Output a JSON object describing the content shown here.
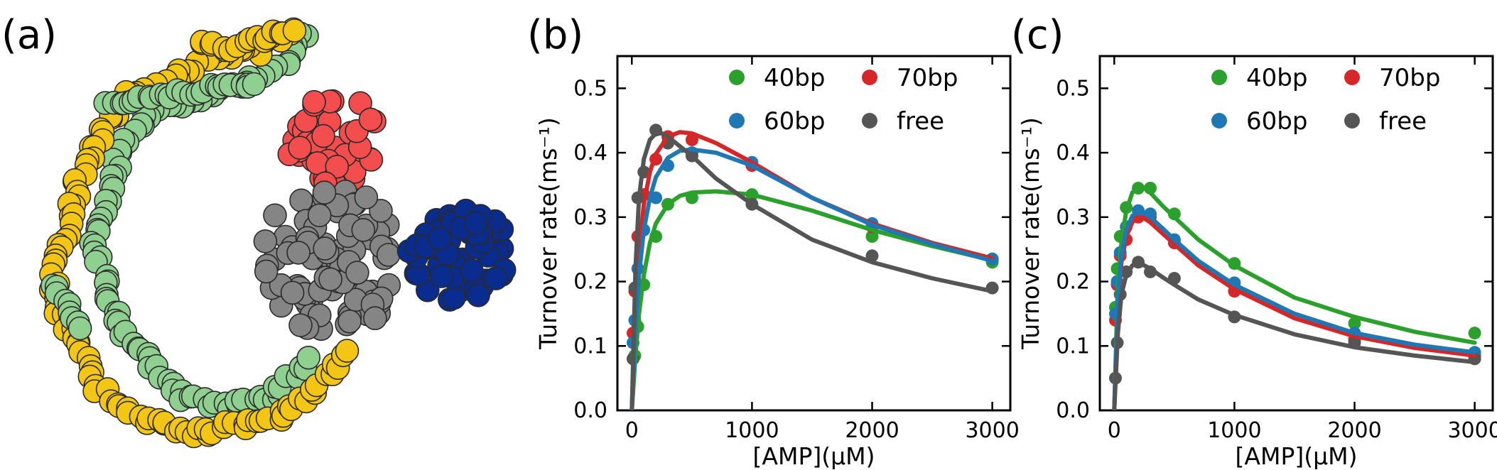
{
  "panel_labels": {
    "a": "(a)",
    "b": "(b)",
    "c": "(c)"
  },
  "colors": {
    "green": "#2ca02c",
    "red": "#d62728",
    "blue": "#1f77b4",
    "gray": "#555555",
    "bead_green": "#8fcf8f",
    "bead_yellow": "#f3c515",
    "bead_red": "#f44d4d",
    "bead_gray": "#858585",
    "bead_blue": "#0b2c8f"
  },
  "chart_data": [
    {
      "type": "line",
      "panel": "(b)",
      "xlabel": "[AMP](μM)",
      "ylabel": "Turnover rate(ms⁻¹)",
      "xlim": [
        -120,
        3150
      ],
      "ylim": [
        0,
        0.55
      ],
      "xticks": [
        0,
        1000,
        2000,
        3000
      ],
      "yticks": [
        0.0,
        0.1,
        0.2,
        0.3,
        0.4,
        0.5
      ],
      "ytick_labels": [
        "0.0",
        "0.1",
        "0.2",
        "0.3",
        "0.4",
        "0.5"
      ],
      "legend": {
        "position": "top-right",
        "columns": 2
      },
      "series": [
        {
          "name": "40bp",
          "color": "green",
          "points": {
            "x": [
              10,
              25,
              50,
              100,
              200,
              300,
              500,
              1000,
              2000,
              3000
            ],
            "y": [
              0.08,
              0.085,
              0.13,
              0.195,
              0.27,
              0.32,
              0.33,
              0.335,
              0.27,
              0.23
            ]
          },
          "curve": {
            "x": [
              0,
              30,
              60,
              100,
              150,
              200,
              300,
              400,
              500,
              700,
              1000,
              1500,
              2000,
              2500,
              3000
            ],
            "y": [
              0.0,
              0.085,
              0.15,
              0.21,
              0.26,
              0.29,
              0.32,
              0.333,
              0.338,
              0.34,
              0.335,
              0.31,
              0.28,
              0.255,
              0.233
            ]
          }
        },
        {
          "name": "70bp",
          "color": "red",
          "points": {
            "x": [
              10,
              25,
              50,
              100,
              200,
              300,
              500,
              1000,
              2000,
              3000
            ],
            "y": [
              0.12,
              0.185,
              0.27,
              0.335,
              0.39,
              0.425,
              0.42,
              0.38,
              0.285,
              0.235
            ]
          },
          "curve": {
            "x": [
              0,
              30,
              60,
              100,
              150,
              200,
              300,
              400,
              500,
              700,
              1000,
              1500,
              2000,
              2500,
              3000
            ],
            "y": [
              0.0,
              0.16,
              0.25,
              0.32,
              0.37,
              0.398,
              0.425,
              0.432,
              0.43,
              0.415,
              0.385,
              0.33,
              0.29,
              0.26,
              0.236
            ]
          }
        },
        {
          "name": "60bp",
          "color": "blue",
          "points": {
            "x": [
              10,
              25,
              50,
              100,
              200,
              300,
              500,
              1000,
              2000,
              3000
            ],
            "y": [
              0.105,
              0.14,
              0.22,
              0.28,
              0.33,
              0.38,
              0.4,
              0.385,
              0.29,
              0.235
            ]
          },
          "curve": {
            "x": [
              0,
              30,
              60,
              100,
              150,
              200,
              300,
              400,
              500,
              700,
              1000,
              1500,
              2000,
              2500,
              3000
            ],
            "y": [
              0.0,
              0.13,
              0.21,
              0.28,
              0.33,
              0.362,
              0.392,
              0.403,
              0.405,
              0.4,
              0.38,
              0.33,
              0.288,
              0.258,
              0.232
            ]
          }
        },
        {
          "name": "free",
          "color": "gray",
          "points": {
            "x": [
              10,
              25,
              50,
              100,
              200,
              300,
              500,
              1000,
              2000,
              3000
            ],
            "y": [
              0.08,
              0.19,
              0.33,
              0.37,
              0.435,
              0.415,
              0.395,
              0.32,
              0.24,
              0.19
            ]
          },
          "curve": {
            "x": [
              0,
              30,
              60,
              100,
              150,
              200,
              250,
              300,
              400,
              500,
              700,
              1000,
              1500,
              2000,
              2500,
              3000
            ],
            "y": [
              0.0,
              0.22,
              0.33,
              0.39,
              0.42,
              0.43,
              0.43,
              0.425,
              0.41,
              0.395,
              0.36,
              0.32,
              0.265,
              0.23,
              0.205,
              0.185
            ]
          }
        }
      ]
    },
    {
      "type": "line",
      "panel": "(c)",
      "xlabel": "[AMP](μM)",
      "ylabel": "Turnover rate(ms⁻¹)",
      "xlim": [
        -120,
        3150
      ],
      "ylim": [
        0,
        0.55
      ],
      "xticks": [
        0,
        1000,
        2000,
        3000
      ],
      "yticks": [
        0.0,
        0.1,
        0.2,
        0.3,
        0.4,
        0.5
      ],
      "ytick_labels": [
        "0.0",
        "0.1",
        "0.2",
        "0.3",
        "0.4",
        "0.5"
      ],
      "legend": {
        "position": "top-right",
        "columns": 2
      },
      "series": [
        {
          "name": "40bp",
          "color": "green",
          "points": {
            "x": [
              10,
              25,
              50,
              100,
              200,
              300,
              500,
              1000,
              2000,
              3000
            ],
            "y": [
              0.16,
              0.22,
              0.27,
              0.315,
              0.345,
              0.345,
              0.305,
              0.228,
              0.135,
              0.12
            ]
          },
          "curve": {
            "x": [
              0,
              30,
              60,
              100,
              150,
              200,
              250,
              300,
              400,
              500,
              700,
              1000,
              1500,
              2000,
              2500,
              3000
            ],
            "y": [
              0.0,
              0.2,
              0.26,
              0.31,
              0.338,
              0.347,
              0.345,
              0.338,
              0.318,
              0.3,
              0.265,
              0.225,
              0.175,
              0.145,
              0.122,
              0.105
            ]
          }
        },
        {
          "name": "70bp",
          "color": "red",
          "points": {
            "x": [
              10,
              25,
              50,
              100,
              200,
              300,
              500,
              1000,
              2000,
              3000
            ],
            "y": [
              0.14,
              0.195,
              0.24,
              0.265,
              0.3,
              0.3,
              0.26,
              0.185,
              0.11,
              0.085
            ]
          },
          "curve": {
            "x": [
              0,
              30,
              60,
              100,
              150,
              200,
              250,
              300,
              400,
              500,
              700,
              1000,
              1500,
              2000,
              2500,
              3000
            ],
            "y": [
              0.0,
              0.17,
              0.23,
              0.27,
              0.292,
              0.3,
              0.298,
              0.292,
              0.275,
              0.258,
              0.225,
              0.188,
              0.143,
              0.115,
              0.097,
              0.085
            ]
          }
        },
        {
          "name": "60bp",
          "color": "blue",
          "points": {
            "x": [
              10,
              25,
              50,
              100,
              200,
              300,
              500,
              1000,
              2000,
              3000
            ],
            "y": [
              0.15,
              0.2,
              0.245,
              0.285,
              0.31,
              0.305,
              0.265,
              0.198,
              0.12,
              0.09
            ]
          },
          "curve": {
            "x": [
              0,
              30,
              60,
              100,
              150,
              200,
              250,
              300,
              400,
              500,
              700,
              1000,
              1500,
              2000,
              2500,
              3000
            ],
            "y": [
              0.0,
              0.175,
              0.24,
              0.28,
              0.302,
              0.308,
              0.306,
              0.3,
              0.283,
              0.265,
              0.232,
              0.195,
              0.15,
              0.12,
              0.102,
              0.09
            ]
          }
        },
        {
          "name": "free",
          "color": "gray",
          "points": {
            "x": [
              10,
              25,
              50,
              100,
              200,
              300,
              500,
              1000,
              2000,
              3000
            ],
            "y": [
              0.05,
              0.105,
              0.18,
              0.215,
              0.23,
              0.215,
              0.205,
              0.145,
              0.105,
              0.08
            ]
          },
          "curve": {
            "x": [
              0,
              30,
              60,
              100,
              150,
              200,
              250,
              300,
              400,
              500,
              700,
              1000,
              1500,
              2000,
              2500,
              3000
            ],
            "y": [
              0.0,
              0.12,
              0.18,
              0.21,
              0.225,
              0.228,
              0.225,
              0.22,
              0.207,
              0.195,
              0.172,
              0.148,
              0.118,
              0.098,
              0.085,
              0.075
            ]
          }
        }
      ]
    }
  ]
}
